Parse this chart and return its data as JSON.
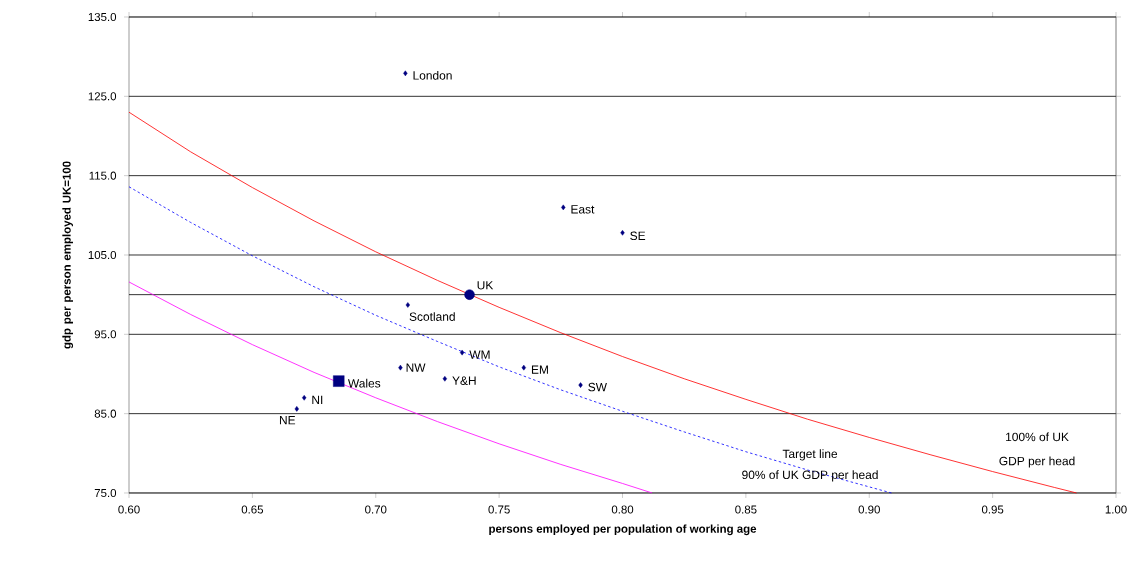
{
  "chart_data": {
    "type": "scatter",
    "xlabel": "persons employed per population of working age",
    "ylabel": "gdp per person employed UK=100",
    "xlim": [
      0.6,
      1.0
    ],
    "ylim": [
      75,
      135
    ],
    "grid": "y",
    "xticks": [
      {
        "value": 0.6,
        "label": "0.60"
      },
      {
        "value": 0.65,
        "label": "0.65"
      },
      {
        "value": 0.7,
        "label": "0.70"
      },
      {
        "value": 0.75,
        "label": "0.75"
      },
      {
        "value": 0.8,
        "label": "0.80"
      },
      {
        "value": 0.85,
        "label": "0.85"
      },
      {
        "value": 0.9,
        "label": "0.90"
      },
      {
        "value": 0.95,
        "label": "0.95"
      },
      {
        "value": 1.0,
        "label": "1.00"
      }
    ],
    "yticks": [
      {
        "value": 75,
        "label": "75.0"
      },
      {
        "value": 85,
        "label": "85.0"
      },
      {
        "value": 95,
        "label": "95.0"
      },
      {
        "value": 105,
        "label": "105.0"
      },
      {
        "value": 115,
        "label": "115.0"
      },
      {
        "value": 125,
        "label": "125.0"
      },
      {
        "value": 135,
        "label": "135.0"
      }
    ],
    "ref_lines": [
      {
        "axis": "y",
        "value": 100,
        "color": "#000000"
      }
    ],
    "series": [
      {
        "type": "line",
        "color": "#ff0000",
        "line_style": "solid",
        "marker": "none",
        "x": [
          0.6,
          0.625,
          0.65,
          0.675,
          0.7,
          0.725,
          0.75,
          0.775,
          0.8,
          0.825,
          0.85,
          0.875,
          0.9,
          0.925,
          0.95,
          0.975,
          0.984
        ],
        "values": [
          123.0,
          118.0,
          113.5,
          109.3,
          105.4,
          101.8,
          98.4,
          95.2,
          92.2,
          89.4,
          86.8,
          84.3,
          82.0,
          79.8,
          77.7,
          75.7,
          75.0
        ]
      },
      {
        "type": "line",
        "color": "#0000ff",
        "line_style": "dotted",
        "marker": "none",
        "x": [
          0.6,
          0.625,
          0.65,
          0.675,
          0.7,
          0.725,
          0.75,
          0.775,
          0.8,
          0.825,
          0.85,
          0.875,
          0.909
        ],
        "values": [
          113.6,
          109.1,
          104.9,
          101.0,
          97.4,
          94.1,
          90.9,
          88.0,
          85.3,
          82.7,
          80.2,
          77.9,
          75.0
        ]
      },
      {
        "type": "line",
        "color": "#ff00ff",
        "line_style": "solid",
        "marker": "none",
        "x": [
          0.6,
          0.625,
          0.65,
          0.675,
          0.7,
          0.725,
          0.75,
          0.775,
          0.8,
          0.812
        ],
        "values": [
          101.6,
          97.5,
          93.7,
          90.2,
          87.0,
          84.0,
          81.2,
          78.6,
          76.2,
          75.0
        ]
      },
      {
        "color": "#000080",
        "marker": "diamond",
        "x": [
          0.712,
          0.776,
          0.8,
          0.713,
          0.735,
          0.71,
          0.728,
          0.76,
          0.783,
          0.671,
          0.668
        ],
        "values": [
          127.9,
          111.0,
          107.8,
          98.7,
          92.7,
          90.8,
          89.4,
          90.8,
          88.6,
          87.0,
          85.6
        ]
      },
      {
        "color": "#000080",
        "marker": "circle",
        "x": [
          0.738
        ],
        "values": [
          100
        ]
      },
      {
        "color": "#000080",
        "marker": "square",
        "x": [
          0.685
        ],
        "values": [
          89.1
        ]
      }
    ],
    "annotations": [
      {
        "text": "London",
        "x": 0.712,
        "y": 127.9
      },
      {
        "text": "East",
        "x": 0.776,
        "y": 111.0
      },
      {
        "text": "SE",
        "x": 0.8,
        "y": 107.8
      },
      {
        "text": "UK",
        "x": 0.738,
        "y": 100
      },
      {
        "text": "Scotland",
        "x": 0.713,
        "y": 98.7
      },
      {
        "text": "WM",
        "x": 0.735,
        "y": 92.7
      },
      {
        "text": "NW",
        "x": 0.71,
        "y": 90.8
      },
      {
        "text": "Y&H",
        "x": 0.728,
        "y": 89.4
      },
      {
        "text": "EM",
        "x": 0.76,
        "y": 90.8
      },
      {
        "text": "SW",
        "x": 0.783,
        "y": 88.6
      },
      {
        "text": "Wales",
        "x": 0.685,
        "y": 89.1
      },
      {
        "text": "NI",
        "x": 0.671,
        "y": 87.0
      },
      {
        "text": "NE",
        "x": 0.668,
        "y": 85.6
      },
      "Target line",
      "90% of UK GDP per head",
      "100% of UK",
      "GDP per head"
    ]
  }
}
